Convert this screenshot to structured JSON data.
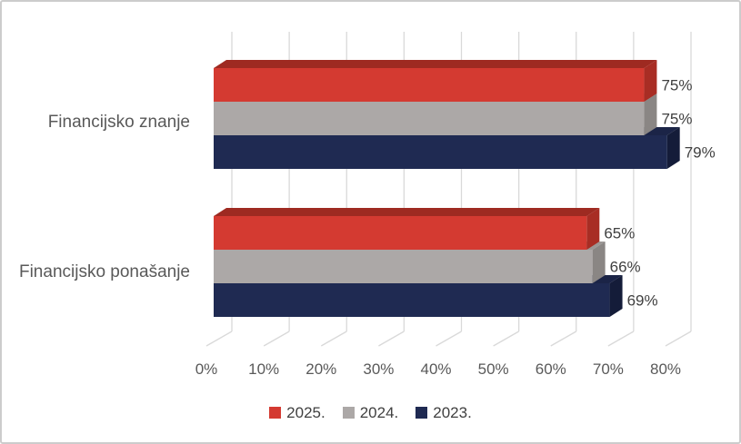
{
  "chart_data": {
    "type": "bar",
    "orientation": "horizontal",
    "style": "3d",
    "title": "",
    "categories": [
      "Financijsko znanje",
      "Financijsko ponašanje"
    ],
    "series": [
      {
        "name": "2025.",
        "values": [
          75,
          65
        ],
        "labels": [
          "75%",
          "65%"
        ],
        "color_front": "#d43a31",
        "color_top": "#9e2a21",
        "color_side": "#a82d24"
      },
      {
        "name": "2024.",
        "values": [
          75,
          66
        ],
        "labels": [
          "75%",
          "66%"
        ],
        "color_front": "#aca8a7",
        "color_top": "#9b9795",
        "color_side": "#8a8684"
      },
      {
        "name": "2023.",
        "values": [
          79,
          69
        ],
        "labels": [
          "79%",
          "69%"
        ],
        "color_front": "#1f2a52",
        "color_top": "#1b2447",
        "color_side": "#141c39"
      }
    ],
    "x_axis": {
      "min": 0,
      "max": 80,
      "step": 10,
      "tick_labels": [
        "0%",
        "10%",
        "20%",
        "30%",
        "40%",
        "50%",
        "60%",
        "70%",
        "80%"
      ]
    },
    "legend": {
      "position": "bottom",
      "entries": [
        {
          "label": "2025.",
          "color": "#d43a31"
        },
        {
          "label": "2024.",
          "color": "#aca8a7"
        },
        {
          "label": "2023.",
          "color": "#1f2a52"
        }
      ]
    },
    "gridlines": true
  },
  "colors": {
    "gridline": "#d9d9d9",
    "axis_text": "#595959",
    "category_text": "#595959",
    "data_label_text": "#404040",
    "legend_text": "#404040",
    "background": "#ffffff",
    "border": "#cccccc"
  }
}
